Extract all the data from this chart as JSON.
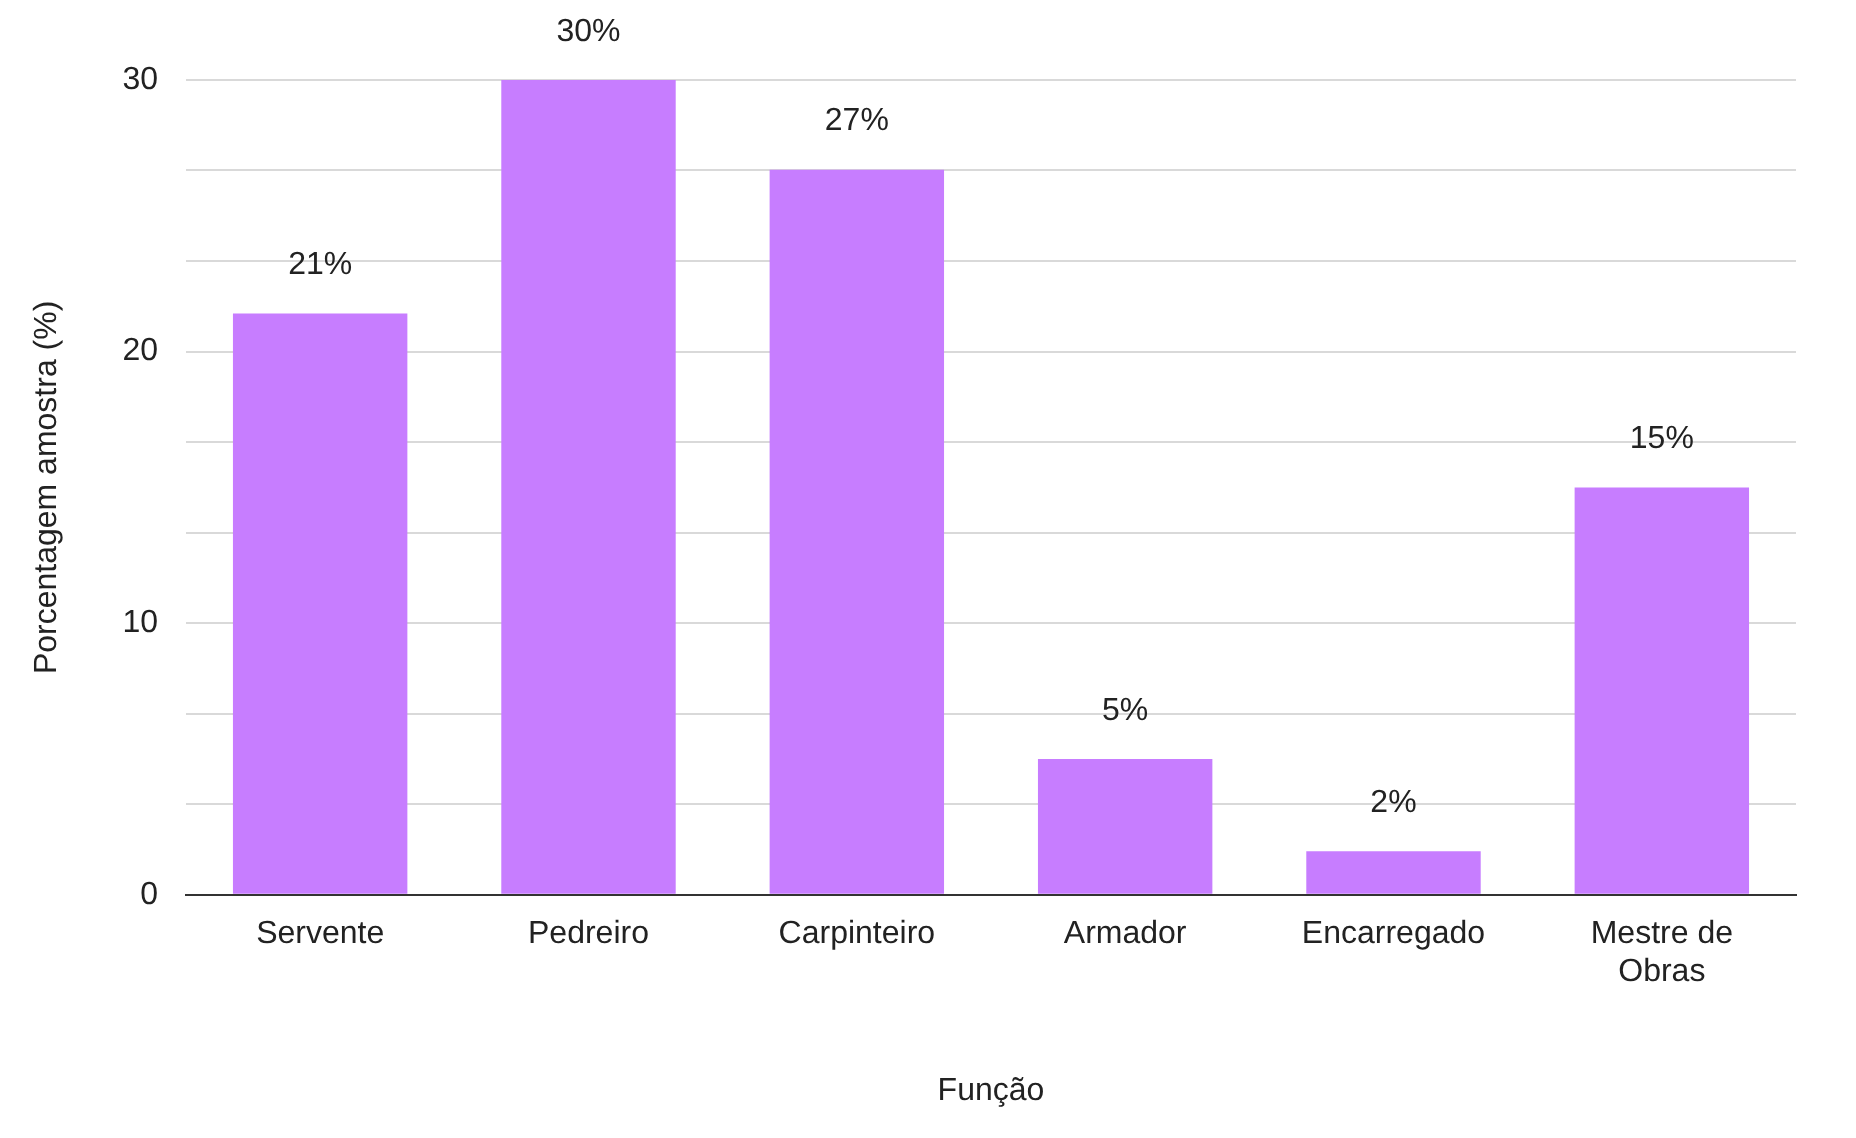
{
  "chart_data": {
    "type": "bar",
    "xlabel": "Função",
    "ylabel": "Porcentagem amostra (%)",
    "categories": [
      "Servente",
      "Pedreiro",
      "Carpinteiro",
      "Armador",
      "Encarregado",
      "Mestre de Obras"
    ],
    "values": [
      21.4,
      30,
      26.7,
      5,
      1.6,
      15
    ],
    "value_labels": [
      "21%",
      "30%",
      "27%",
      "5%",
      "2%",
      "15%"
    ],
    "color": "#c77dff",
    "ylim": [
      0,
      30
    ],
    "yticks": [
      0,
      {
        "value": 3.33,
        "label": null
      },
      {
        "value": 6.67,
        "label": null
      },
      10,
      {
        "value": 13.33,
        "label": null
      },
      {
        "value": 16.67,
        "label": null
      },
      20,
      {
        "value": 23.33,
        "label": null
      },
      {
        "value": 26.67,
        "label": null
      },
      30
    ],
    "grid": "y"
  }
}
